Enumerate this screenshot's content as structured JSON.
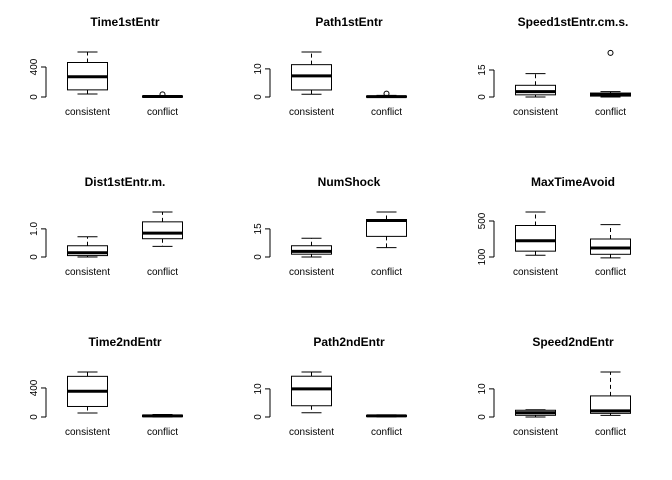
{
  "chart_data": [
    {
      "type": "box",
      "title": "Time1stEntr",
      "categories": [
        "consistent",
        "conflict"
      ],
      "ylim": [
        0,
        600
      ],
      "yticks": [
        0,
        400
      ],
      "boxes": [
        {
          "whisker_low": 40,
          "q1": 95,
          "median": 270,
          "q3": 460,
          "whisker_high": 600,
          "outliers": []
        },
        {
          "whisker_low": 0,
          "q1": 2,
          "median": 6,
          "q3": 12,
          "whisker_high": 18,
          "outliers": [
            35
          ]
        }
      ]
    },
    {
      "type": "box",
      "title": "Path1stEntr",
      "categories": [
        "consistent",
        "conflict"
      ],
      "ylim": [
        0,
        16
      ],
      "yticks": [
        0,
        10
      ],
      "boxes": [
        {
          "whisker_low": 1,
          "q1": 2.5,
          "median": 7.5,
          "q3": 11.5,
          "whisker_high": 16,
          "outliers": []
        },
        {
          "whisker_low": 0,
          "q1": 0.05,
          "median": 0.15,
          "q3": 0.3,
          "whisker_high": 0.6,
          "outliers": [
            1.2
          ]
        }
      ]
    },
    {
      "type": "box",
      "title": "Speed1stEntr.cm.s.",
      "categories": [
        "consistent",
        "conflict"
      ],
      "ylim": [
        0,
        25
      ],
      "yticks": [
        0,
        15
      ],
      "boxes": [
        {
          "whisker_low": 0,
          "q1": 1.2,
          "median": 3,
          "q3": 6.5,
          "whisker_high": 13,
          "outliers": []
        },
        {
          "whisker_low": 0,
          "q1": 0.5,
          "median": 1.3,
          "q3": 2.2,
          "whisker_high": 3,
          "outliers": [
            24.5
          ]
        }
      ]
    },
    {
      "type": "box",
      "title": "Dist1stEntr.m.",
      "categories": [
        "consistent",
        "conflict"
      ],
      "ylim": [
        0,
        1.6
      ],
      "yticks": [
        0,
        1.0
      ],
      "boxes": [
        {
          "whisker_low": 0,
          "q1": 0.05,
          "median": 0.15,
          "q3": 0.4,
          "whisker_high": 0.72,
          "outliers": []
        },
        {
          "whisker_low": 0.38,
          "q1": 0.65,
          "median": 0.85,
          "q3": 1.25,
          "whisker_high": 1.6,
          "outliers": []
        }
      ]
    },
    {
      "type": "box",
      "title": "NumShock",
      "categories": [
        "consistent",
        "conflict"
      ],
      "ylim": [
        0,
        24
      ],
      "yticks": [
        0,
        15
      ],
      "boxes": [
        {
          "whisker_low": 0,
          "q1": 1.5,
          "median": 3,
          "q3": 6,
          "whisker_high": 10,
          "outliers": []
        },
        {
          "whisker_low": 5,
          "q1": 11,
          "median": 19.5,
          "q3": 20,
          "whisker_high": 24,
          "outliers": []
        }
      ]
    },
    {
      "type": "box",
      "title": "MaxTimeAvoid",
      "categories": [
        "consistent",
        "conflict"
      ],
      "ylim": [
        100,
        600
      ],
      "yticks": [
        100,
        500
      ],
      "boxes": [
        {
          "whisker_low": 120,
          "q1": 165,
          "median": 280,
          "q3": 450,
          "whisker_high": 600,
          "outliers": []
        },
        {
          "whisker_low": 90,
          "q1": 130,
          "median": 200,
          "q3": 300,
          "whisker_high": 460,
          "outliers": []
        }
      ]
    },
    {
      "type": "box",
      "title": "Time2ndEntr",
      "categories": [
        "consistent",
        "conflict"
      ],
      "ylim": [
        0,
        620
      ],
      "yticks": [
        0,
        400
      ],
      "boxes": [
        {
          "whisker_low": 55,
          "q1": 145,
          "median": 355,
          "q3": 560,
          "whisker_high": 620,
          "outliers": []
        },
        {
          "whisker_low": 0,
          "q1": 5,
          "median": 15,
          "q3": 25,
          "whisker_high": 35,
          "outliers": []
        }
      ]
    },
    {
      "type": "box",
      "title": "Path2ndEntr",
      "categories": [
        "consistent",
        "conflict"
      ],
      "ylim": [
        0,
        16
      ],
      "yticks": [
        0,
        10
      ],
      "boxes": [
        {
          "whisker_low": 1.5,
          "q1": 4,
          "median": 10,
          "q3": 14.5,
          "whisker_high": 16,
          "outliers": []
        },
        {
          "whisker_low": 0.05,
          "q1": 0.25,
          "median": 0.4,
          "q3": 0.55,
          "whisker_high": 0.75,
          "outliers": []
        }
      ]
    },
    {
      "type": "box",
      "title": "Speed2ndEntr",
      "categories": [
        "consistent",
        "conflict"
      ],
      "ylim": [
        0,
        16
      ],
      "yticks": [
        0,
        10
      ],
      "boxes": [
        {
          "whisker_low": 0,
          "q1": 0.6,
          "median": 1.5,
          "q3": 2.4,
          "whisker_high": 2.6,
          "outliers": []
        },
        {
          "whisker_low": 0.6,
          "q1": 1.3,
          "median": 2.2,
          "q3": 7.5,
          "whisker_high": 16,
          "outliers": []
        }
      ]
    }
  ]
}
